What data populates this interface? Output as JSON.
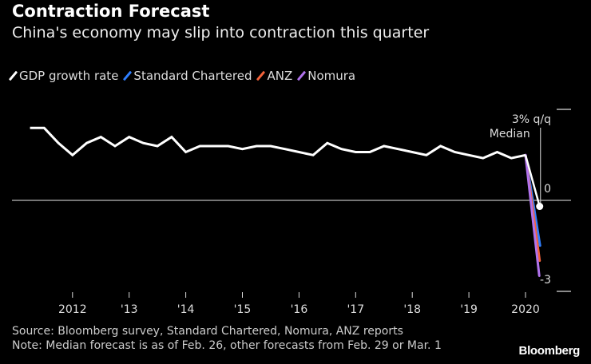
{
  "header": {
    "title": "Contraction Forecast",
    "subtitle": "China's economy may slip into contraction this quarter"
  },
  "footer": {
    "source": "Source: Bloomberg survey, Standard Chartered, Nomura, ANZ reports",
    "note": "Note: Median forecast is as of Feb. 26, other forecasts from Feb. 29 or Mar. 1",
    "logo": "Bloomberg"
  },
  "chart_data": {
    "type": "line",
    "title": "Contraction Forecast",
    "subtitle": "China's economy may slip into contraction this quarter",
    "y_unit_label": "3% q/q",
    "ylim": [
      -3,
      3
    ],
    "y_ticks": [
      {
        "value": 3,
        "label": "3% q/q"
      },
      {
        "value": 0,
        "label": "0"
      },
      {
        "value": -3,
        "label": "-3"
      }
    ],
    "x_ticks": [
      {
        "value": 2012,
        "label": "2012"
      },
      {
        "value": 2013,
        "label": "'13"
      },
      {
        "value": 2014,
        "label": "'14"
      },
      {
        "value": 2015,
        "label": "'15"
      },
      {
        "value": 2016,
        "label": "'16"
      },
      {
        "value": 2017,
        "label": "'17"
      },
      {
        "value": 2018,
        "label": "'18"
      },
      {
        "value": 2019,
        "label": "'19"
      },
      {
        "value": 2020,
        "label": "2020"
      }
    ],
    "legend_placement": "top-left",
    "grid": false,
    "annotation": "Median",
    "series": [
      {
        "name": "GDP growth rate",
        "color": "#ffffff",
        "start_quarter": "2011 Q1",
        "frequency": "quarterly",
        "values": [
          2.4,
          2.4,
          1.9,
          1.5,
          1.9,
          2.1,
          1.8,
          2.1,
          1.9,
          1.8,
          2.1,
          1.6,
          1.8,
          1.8,
          1.8,
          1.7,
          1.8,
          1.8,
          1.7,
          1.6,
          1.5,
          1.9,
          1.7,
          1.6,
          1.6,
          1.8,
          1.7,
          1.6,
          1.5,
          1.8,
          1.6,
          1.5,
          1.4,
          1.6,
          1.4,
          1.5
        ]
      },
      {
        "name": "Median",
        "color": "#ffffff",
        "from": "2019 Q4",
        "to": "2020 Q1",
        "value": -0.2
      },
      {
        "name": "Standard Chartered",
        "color": "#2f7fff",
        "from": "2019 Q4",
        "to": "2020 Q1",
        "value": -1.5
      },
      {
        "name": "ANZ",
        "color": "#f4633a",
        "from": "2019 Q4",
        "to": "2020 Q1",
        "value": -2.0
      },
      {
        "name": "Nomura",
        "color": "#b072ec",
        "from": "2019 Q4",
        "to": "2020 Q1",
        "value": -2.5
      }
    ]
  }
}
